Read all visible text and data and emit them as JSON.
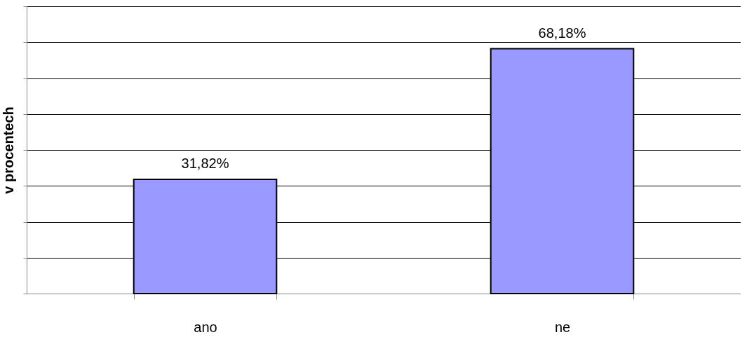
{
  "chart_data": {
    "type": "bar",
    "ylabel": "v procentech",
    "categories": [
      "ano",
      "ne"
    ],
    "values": [
      31.82,
      68.18
    ],
    "value_labels": [
      "31,82%",
      "68,18%"
    ],
    "color": "#9999ff",
    "ylim": [
      0,
      80
    ],
    "yticks": [
      {
        "value": 0,
        "label": null
      },
      {
        "value": 10,
        "label": null
      },
      {
        "value": 20,
        "label": null
      },
      {
        "value": 30,
        "label": null
      },
      {
        "value": 40,
        "label": null
      },
      {
        "value": 50,
        "label": null
      },
      {
        "value": 60,
        "label": null
      },
      {
        "value": 70,
        "label": null
      },
      {
        "value": 80,
        "label": null
      }
    ],
    "grid": "y",
    "tick_labels": "x"
  }
}
